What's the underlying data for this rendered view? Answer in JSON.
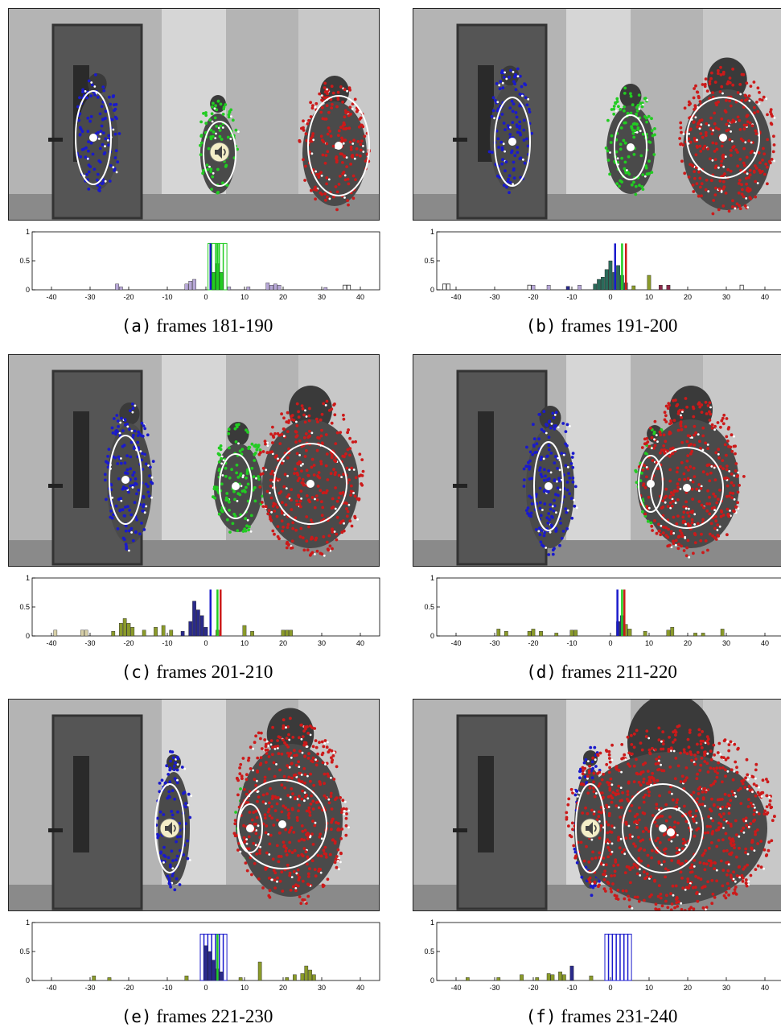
{
  "figure": {
    "panels": [
      {
        "label": "(a)",
        "caption": "frames 181-190",
        "speaker_icon": true
      },
      {
        "label": "(b)",
        "caption": "frames 191-200",
        "speaker_icon": false
      },
      {
        "label": "(c)",
        "caption": "frames 201-210",
        "speaker_icon": false
      },
      {
        "label": "(d)",
        "caption": "frames 211-220",
        "speaker_icon": false
      },
      {
        "label": "(e)",
        "caption": "frames 221-230",
        "speaker_icon": true
      },
      {
        "label": "(f)",
        "caption": "frames 231-240",
        "speaker_icon": true
      }
    ]
  },
  "colors": {
    "blue": "#1a1acc",
    "green": "#22cc22",
    "red": "#cc1a1a",
    "white_marker": "#ffffff",
    "hist_olive": "#8a9a2a",
    "hist_navy": "#2a2a8a",
    "hist_teal": "#2a6a5a",
    "hist_lilac": "#b8a8d8"
  },
  "chart_data": [
    {
      "type": "bar",
      "panel": "(a)",
      "xlim": [
        -45,
        45
      ],
      "ylim": [
        0,
        1
      ],
      "xticks": [
        "-40",
        "-30",
        "-20",
        "-10",
        "0",
        "10",
        "20",
        "30",
        "40"
      ],
      "yticks": [
        "0",
        "0.5",
        "1"
      ],
      "bars": [
        {
          "x": -23,
          "y": 0.1,
          "c": "lilac"
        },
        {
          "x": -22,
          "y": 0.05,
          "c": "lilac"
        },
        {
          "x": -5,
          "y": 0.1,
          "c": "lilac"
        },
        {
          "x": -4,
          "y": 0.15,
          "c": "lilac"
        },
        {
          "x": -3,
          "y": 0.18,
          "c": "lilac"
        },
        {
          "x": 1,
          "y": 0.8,
          "c": "green_outline"
        },
        {
          "x": 2,
          "y": 0.8,
          "c": "green_outline"
        },
        {
          "x": 3,
          "y": 0.8,
          "c": "green_outline"
        },
        {
          "x": 4,
          "y": 0.8,
          "c": "green_outline"
        },
        {
          "x": 5,
          "y": 0.8,
          "c": "green_outline"
        },
        {
          "x": 2,
          "y": 0.3,
          "c": "green"
        },
        {
          "x": 3,
          "y": 0.45,
          "c": "green"
        },
        {
          "x": 4,
          "y": 0.3,
          "c": "green"
        },
        {
          "x": 6,
          "y": 0.05,
          "c": "lilac"
        },
        {
          "x": 11,
          "y": 0.05,
          "c": "lilac"
        },
        {
          "x": 16,
          "y": 0.12,
          "c": "lilac"
        },
        {
          "x": 17,
          "y": 0.08,
          "c": "lilac"
        },
        {
          "x": 18,
          "y": 0.1,
          "c": "lilac"
        },
        {
          "x": 19,
          "y": 0.08,
          "c": "lilac"
        },
        {
          "x": 31,
          "y": 0.04,
          "c": "lilac"
        },
        {
          "x": 36,
          "y": 0.08,
          "c": "outline"
        },
        {
          "x": 37,
          "y": 0.08,
          "c": "outline"
        }
      ],
      "lines": [
        {
          "x": 1.2,
          "c": "blue"
        },
        {
          "x": 3,
          "c": "green"
        }
      ]
    },
    {
      "type": "bar",
      "panel": "(b)",
      "xlim": [
        -45,
        45
      ],
      "ylim": [
        0,
        1
      ],
      "xticks": [
        "-40",
        "-30",
        "-20",
        "-10",
        "0",
        "10",
        "20",
        "30",
        "40"
      ],
      "yticks": [
        "0",
        "0.5",
        "1"
      ],
      "bars": [
        {
          "x": -43,
          "y": 0.1,
          "c": "outline"
        },
        {
          "x": -42,
          "y": 0.1,
          "c": "outline"
        },
        {
          "x": -21,
          "y": 0.08,
          "c": "outline"
        },
        {
          "x": -20,
          "y": 0.08,
          "c": "lilac"
        },
        {
          "x": -16,
          "y": 0.08,
          "c": "lilac"
        },
        {
          "x": -11,
          "y": 0.06,
          "c": "navy"
        },
        {
          "x": -8,
          "y": 0.08,
          "c": "lilac"
        },
        {
          "x": -4,
          "y": 0.1,
          "c": "teal"
        },
        {
          "x": -3,
          "y": 0.18,
          "c": "teal"
        },
        {
          "x": -2,
          "y": 0.22,
          "c": "teal"
        },
        {
          "x": -1,
          "y": 0.35,
          "c": "teal"
        },
        {
          "x": 0,
          "y": 0.5,
          "c": "teal"
        },
        {
          "x": 1,
          "y": 0.3,
          "c": "teal"
        },
        {
          "x": 2,
          "y": 0.42,
          "c": "teal"
        },
        {
          "x": 3,
          "y": 0.25,
          "c": "teal"
        },
        {
          "x": 4,
          "y": 0.12,
          "c": "teal"
        },
        {
          "x": 6,
          "y": 0.07,
          "c": "olive"
        },
        {
          "x": 10,
          "y": 0.25,
          "c": "olive"
        },
        {
          "x": 13,
          "y": 0.08,
          "c": "maroon"
        },
        {
          "x": 15,
          "y": 0.08,
          "c": "maroon"
        },
        {
          "x": 34,
          "y": 0.08,
          "c": "outline"
        }
      ],
      "lines": [
        {
          "x": 1.2,
          "c": "blue"
        },
        {
          "x": 3,
          "c": "green"
        },
        {
          "x": 4,
          "c": "red"
        }
      ]
    },
    {
      "type": "bar",
      "panel": "(c)",
      "xlim": [
        -45,
        45
      ],
      "ylim": [
        0,
        1
      ],
      "xticks": [
        "-40",
        "-30",
        "-20",
        "-10",
        "0",
        "10",
        "20",
        "30",
        "40"
      ],
      "yticks": [
        "0",
        "0.5",
        "1"
      ],
      "bars": [
        {
          "x": -39,
          "y": 0.1,
          "c": "beige"
        },
        {
          "x": -32,
          "y": 0.1,
          "c": "beige"
        },
        {
          "x": -31,
          "y": 0.1,
          "c": "beige"
        },
        {
          "x": -24,
          "y": 0.08,
          "c": "olive"
        },
        {
          "x": -22,
          "y": 0.22,
          "c": "olive"
        },
        {
          "x": -21,
          "y": 0.3,
          "c": "olive"
        },
        {
          "x": -20,
          "y": 0.22,
          "c": "olive"
        },
        {
          "x": -19,
          "y": 0.15,
          "c": "olive"
        },
        {
          "x": -16,
          "y": 0.1,
          "c": "olive"
        },
        {
          "x": -13,
          "y": 0.15,
          "c": "olive"
        },
        {
          "x": -11,
          "y": 0.18,
          "c": "olive"
        },
        {
          "x": -9,
          "y": 0.1,
          "c": "olive"
        },
        {
          "x": -6,
          "y": 0.08,
          "c": "navy"
        },
        {
          "x": -4,
          "y": 0.25,
          "c": "navy"
        },
        {
          "x": -3,
          "y": 0.6,
          "c": "navy"
        },
        {
          "x": -2,
          "y": 0.45,
          "c": "navy"
        },
        {
          "x": -1,
          "y": 0.35,
          "c": "navy"
        },
        {
          "x": 0,
          "y": 0.15,
          "c": "navy"
        },
        {
          "x": 3,
          "y": 0.1,
          "c": "olive"
        },
        {
          "x": 10,
          "y": 0.18,
          "c": "olive"
        },
        {
          "x": 12,
          "y": 0.08,
          "c": "olive"
        },
        {
          "x": 20,
          "y": 0.1,
          "c": "olive"
        },
        {
          "x": 21,
          "y": 0.1,
          "c": "olive"
        },
        {
          "x": 22,
          "y": 0.1,
          "c": "olive"
        }
      ],
      "lines": [
        {
          "x": 1.2,
          "c": "blue"
        },
        {
          "x": 3,
          "c": "green"
        },
        {
          "x": 3.8,
          "c": "red"
        }
      ]
    },
    {
      "type": "bar",
      "panel": "(d)",
      "xlim": [
        -45,
        45
      ],
      "ylim": [
        0,
        1
      ],
      "xticks": [
        "-40",
        "-30",
        "-20",
        "-10",
        "0",
        "10",
        "20",
        "30",
        "40"
      ],
      "yticks": [
        "0",
        "0.5",
        "1"
      ],
      "bars": [
        {
          "x": -29,
          "y": 0.12,
          "c": "olive"
        },
        {
          "x": -27,
          "y": 0.08,
          "c": "olive"
        },
        {
          "x": -21,
          "y": 0.08,
          "c": "olive"
        },
        {
          "x": -20,
          "y": 0.12,
          "c": "olive"
        },
        {
          "x": -18,
          "y": 0.08,
          "c": "olive"
        },
        {
          "x": -14,
          "y": 0.05,
          "c": "olive"
        },
        {
          "x": -10,
          "y": 0.1,
          "c": "olive"
        },
        {
          "x": -9,
          "y": 0.1,
          "c": "olive"
        },
        {
          "x": 2,
          "y": 0.25,
          "c": "navy"
        },
        {
          "x": 3,
          "y": 0.35,
          "c": "navy"
        },
        {
          "x": 4,
          "y": 0.2,
          "c": "olive"
        },
        {
          "x": 5,
          "y": 0.12,
          "c": "olive"
        },
        {
          "x": 9,
          "y": 0.08,
          "c": "olive"
        },
        {
          "x": 15,
          "y": 0.1,
          "c": "olive"
        },
        {
          "x": 16,
          "y": 0.15,
          "c": "olive"
        },
        {
          "x": 22,
          "y": 0.05,
          "c": "olive"
        },
        {
          "x": 24,
          "y": 0.05,
          "c": "olive"
        },
        {
          "x": 29,
          "y": 0.12,
          "c": "olive"
        }
      ],
      "lines": [
        {
          "x": 1.8,
          "c": "blue"
        },
        {
          "x": 3,
          "c": "green"
        },
        {
          "x": 3.6,
          "c": "red"
        }
      ]
    },
    {
      "type": "bar",
      "panel": "(e)",
      "xlim": [
        -45,
        45
      ],
      "ylim": [
        0,
        1
      ],
      "xticks": [
        "-40",
        "-30",
        "-20",
        "-10",
        "0",
        "10",
        "20",
        "30",
        "40"
      ],
      "yticks": [
        "0",
        "0.5",
        "1"
      ],
      "bars": [
        {
          "x": -29,
          "y": 0.08,
          "c": "olive"
        },
        {
          "x": -25,
          "y": 0.05,
          "c": "olive"
        },
        {
          "x": -5,
          "y": 0.08,
          "c": "olive"
        },
        {
          "x": -1,
          "y": 0.8,
          "c": "blue_outline"
        },
        {
          "x": 0,
          "y": 0.8,
          "c": "blue_outline"
        },
        {
          "x": 1,
          "y": 0.8,
          "c": "blue_outline"
        },
        {
          "x": 2,
          "y": 0.8,
          "c": "blue_outline"
        },
        {
          "x": 3,
          "y": 0.8,
          "c": "blue_outline"
        },
        {
          "x": 4,
          "y": 0.8,
          "c": "blue_outline"
        },
        {
          "x": 5,
          "y": 0.8,
          "c": "blue_outline"
        },
        {
          "x": 0,
          "y": 0.6,
          "c": "navy"
        },
        {
          "x": 1,
          "y": 0.5,
          "c": "navy"
        },
        {
          "x": 2,
          "y": 0.35,
          "c": "navy"
        },
        {
          "x": 3,
          "y": 0.2,
          "c": "navy"
        },
        {
          "x": 4,
          "y": 0.15,
          "c": "navy"
        },
        {
          "x": 9,
          "y": 0.05,
          "c": "olive"
        },
        {
          "x": 14,
          "y": 0.32,
          "c": "olive"
        },
        {
          "x": 21,
          "y": 0.05,
          "c": "olive"
        },
        {
          "x": 23,
          "y": 0.1,
          "c": "olive"
        },
        {
          "x": 25,
          "y": 0.12,
          "c": "olive"
        },
        {
          "x": 26,
          "y": 0.25,
          "c": "olive"
        },
        {
          "x": 27,
          "y": 0.18,
          "c": "olive"
        },
        {
          "x": 28,
          "y": 0.1,
          "c": "olive"
        }
      ],
      "lines": [
        {
          "x": 3,
          "c": "green"
        }
      ]
    },
    {
      "type": "bar",
      "panel": "(f)",
      "xlim": [
        -45,
        45
      ],
      "ylim": [
        0,
        1
      ],
      "xticks": [
        "-40",
        "-30",
        "-20",
        "-10",
        "0",
        "10",
        "20",
        "30",
        "40"
      ],
      "yticks": [
        "0",
        "0.5",
        "1"
      ],
      "bars": [
        {
          "x": -37,
          "y": 0.05,
          "c": "olive"
        },
        {
          "x": -29,
          "y": 0.05,
          "c": "olive"
        },
        {
          "x": -23,
          "y": 0.1,
          "c": "olive"
        },
        {
          "x": -19,
          "y": 0.05,
          "c": "olive"
        },
        {
          "x": -16,
          "y": 0.12,
          "c": "olive"
        },
        {
          "x": -15,
          "y": 0.1,
          "c": "olive"
        },
        {
          "x": -13,
          "y": 0.15,
          "c": "olive"
        },
        {
          "x": -12,
          "y": 0.1,
          "c": "olive"
        },
        {
          "x": -10,
          "y": 0.25,
          "c": "navy"
        },
        {
          "x": -5,
          "y": 0.08,
          "c": "olive"
        },
        {
          "x": -1,
          "y": 0.8,
          "c": "blue_outline"
        },
        {
          "x": 0,
          "y": 0.8,
          "c": "blue_outline"
        },
        {
          "x": 1,
          "y": 0.8,
          "c": "blue_outline"
        },
        {
          "x": 2,
          "y": 0.8,
          "c": "blue_outline"
        },
        {
          "x": 3,
          "y": 0.8,
          "c": "blue_outline"
        },
        {
          "x": 4,
          "y": 0.8,
          "c": "blue_outline"
        },
        {
          "x": 5,
          "y": 0.8,
          "c": "blue_outline"
        }
      ],
      "lines": []
    }
  ]
}
